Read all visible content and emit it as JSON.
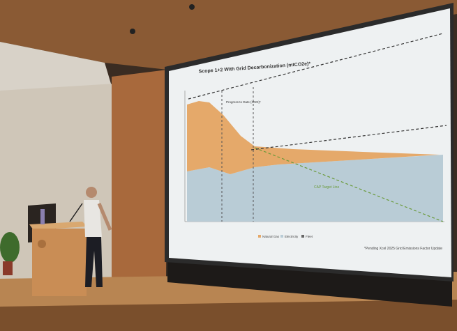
{
  "slide": {
    "title": "Scope 1+2 With Grid Decarbonization (mtCO2e)*",
    "annotations": [
      "Progress to Date (2023)*",
      "CAP Target Line"
    ],
    "legend": [
      "Natural Gas",
      "Electricity",
      "Fleet"
    ],
    "footnote": "*Pending Xcel 2025 Grid Emissions Factor Update"
  }
}
